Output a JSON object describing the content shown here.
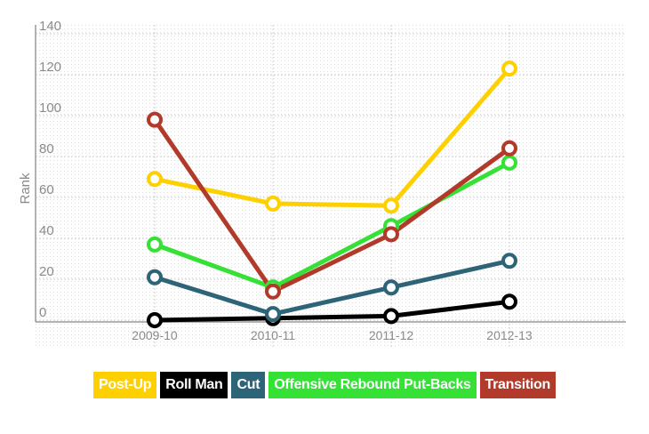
{
  "chart_data": {
    "type": "line",
    "title": "",
    "xlabel": "",
    "ylabel": "Rank",
    "ylim": [
      0,
      140
    ],
    "yticks": [
      0,
      20,
      40,
      60,
      80,
      100,
      120,
      140
    ],
    "categories": [
      "2009-10",
      "2010-11",
      "2011-12",
      "2012-13"
    ],
    "grid": true,
    "legend_position": "bottom",
    "series": [
      {
        "name": "Post-Up",
        "color": "#ffd000",
        "values": [
          69,
          57,
          56,
          123
        ]
      },
      {
        "name": "Roll Man",
        "color": "#000000",
        "values": [
          0,
          1,
          2,
          9
        ]
      },
      {
        "name": "Cut",
        "color": "#2e6478",
        "values": [
          21,
          3,
          16,
          29
        ]
      },
      {
        "name": "Offensive Rebound Put-Backs",
        "color": "#34e134",
        "values": [
          37,
          16,
          46,
          77
        ]
      },
      {
        "name": "Transition",
        "color": "#b23a2a",
        "values": [
          98,
          14,
          42,
          84
        ]
      }
    ]
  }
}
